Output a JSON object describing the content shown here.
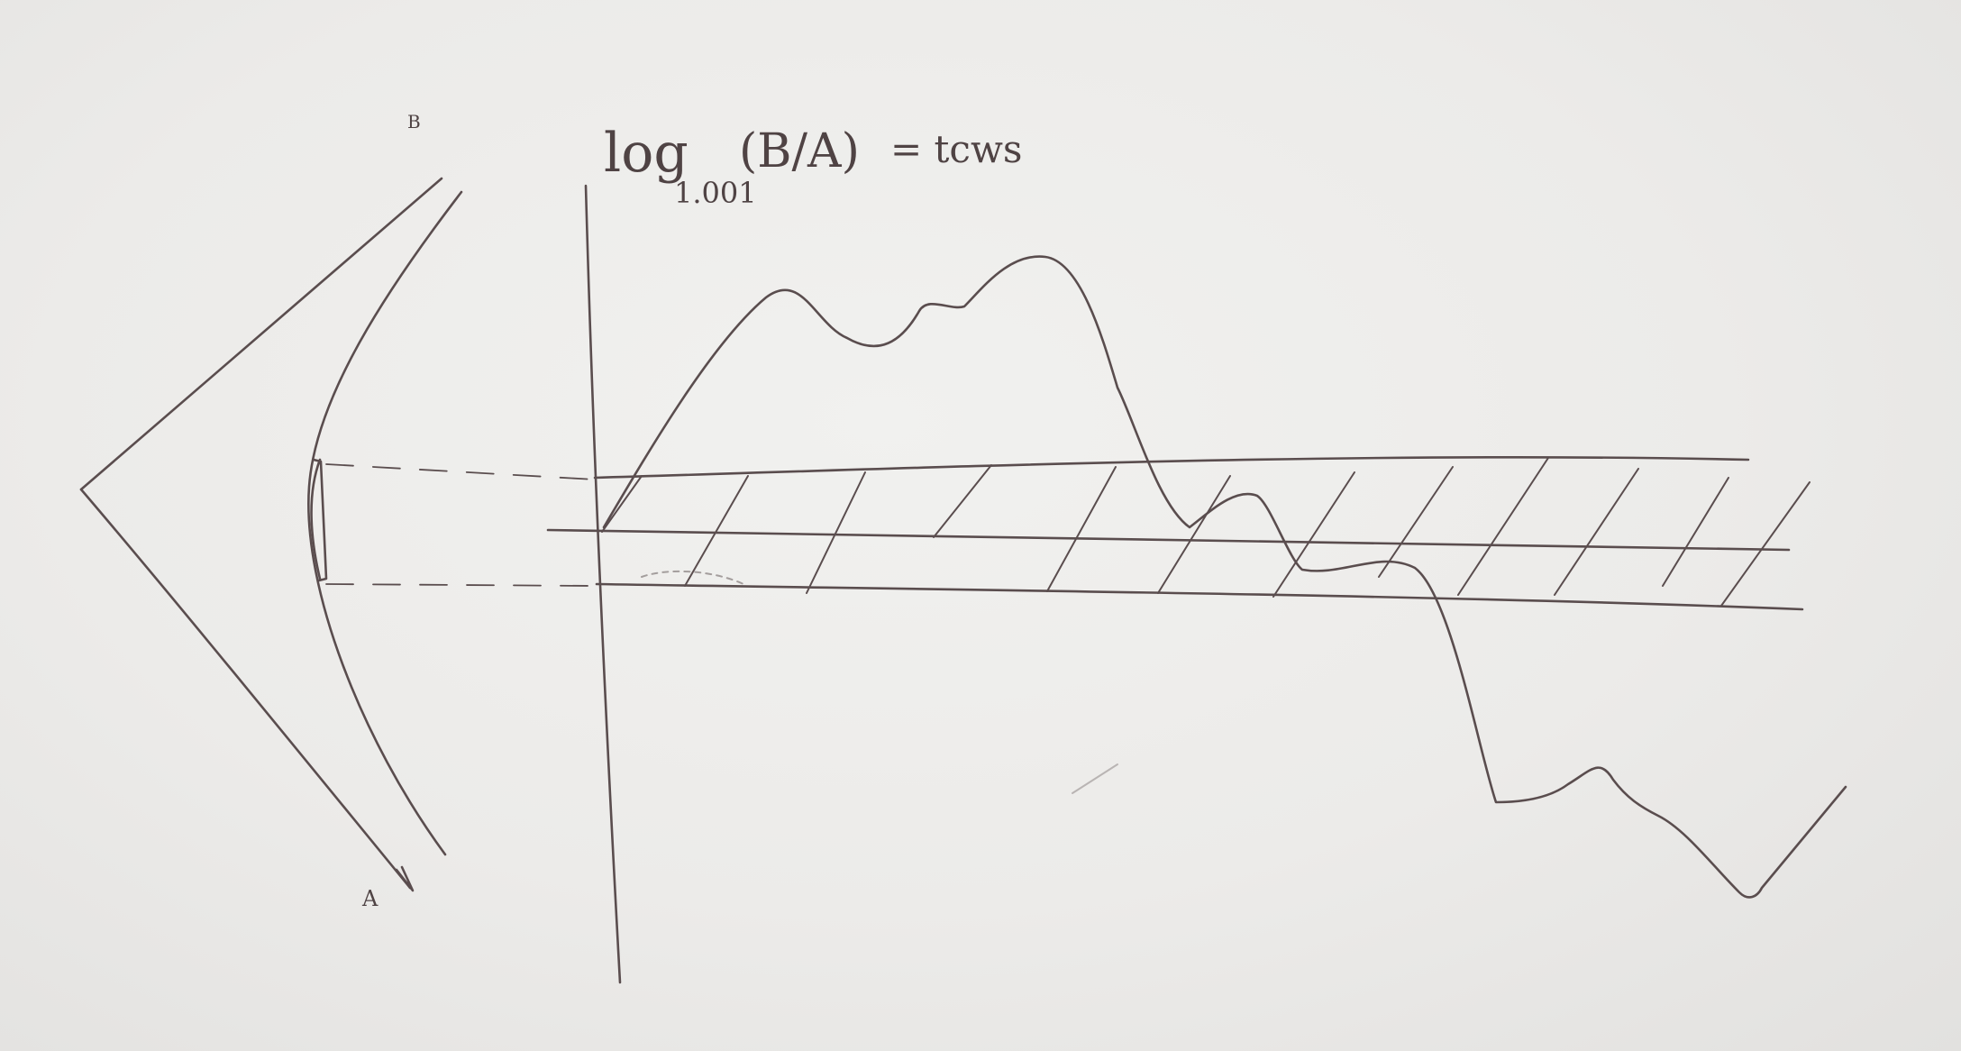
{
  "axis_label": {
    "base_text": "log",
    "subscript": "1.001",
    "argument": "(B/A)",
    "equals_text": "= tcws"
  },
  "vertex_labels": {
    "upper": "B",
    "lower": "A"
  }
}
